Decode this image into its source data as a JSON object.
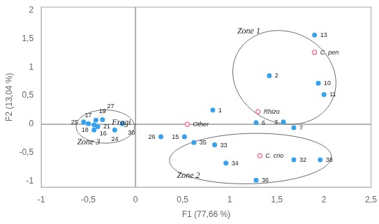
{
  "chart_data": {
    "type": "scatter",
    "xlabel": "F1 (77,66 %)",
    "ylabel": "F2 (13,04 %)",
    "series": [
      {
        "marker": "circle",
        "x": [
          0.82,
          1.42,
          1.57,
          1.28,
          1.68,
          1.94,
          2.0,
          1.9,
          0.52,
          -0.44,
          -0.5,
          -0.44,
          -0.35,
          -0.4,
          -0.22,
          -0.55,
          0.27,
          -0.42,
          -0.14,
          1.68,
          0.84,
          0.96,
          0.62,
          1.28,
          1.96
        ],
        "y": [
          0.25,
          0.85,
          0.04,
          0.03,
          -0.06,
          0.72,
          0.52,
          1.56,
          -0.22,
          -0.01,
          0.01,
          -0.1,
          0.08,
          -0.04,
          -0.1,
          0.04,
          -0.22,
          0.07,
          0.01,
          -0.62,
          -0.36,
          -0.68,
          -0.32,
          -0.98,
          -0.62
        ],
        "point_labels": [
          "1",
          "2",
          "3",
          "6",
          "7",
          "10",
          "11",
          "13",
          "15",
          "16",
          "17",
          "18",
          "19",
          "21",
          "24",
          "25",
          "26",
          "27",
          "30",
          "32",
          "33",
          "34",
          "35",
          "36",
          "38"
        ]
      },
      {
        "marker": "open_circle",
        "x": [
          0.55,
          1.3,
          1.9,
          1.32
        ],
        "y": [
          0.0,
          0.22,
          1.26,
          -0.55
        ],
        "point_labels": [
          "Other",
          "Rhizo",
          "C. pen",
          "C. crio"
        ]
      }
    ],
    "ellipses": [
      {
        "cx": 1.58,
        "cy": 0.82,
        "width": 1.08,
        "height": 1.65,
        "angle": 8
      },
      {
        "cx": 1.22,
        "cy": -0.6,
        "width": 1.72,
        "height": 0.88,
        "angle": 3
      },
      {
        "cx": -0.32,
        "cy": -0.04,
        "width": 0.62,
        "height": 0.58,
        "angle": 0
      }
    ],
    "annotations": [
      {
        "text": "Zone 1",
        "x": 1.08,
        "y": 1.63
      },
      {
        "text": "Zone 2",
        "x": 0.44,
        "y": -0.9
      },
      {
        "text": "Zone 3",
        "x": -0.62,
        "y": -0.32
      },
      {
        "text": "Fragi",
        "x": -0.25,
        "y": 0.03
      }
    ],
    "reference_lines": {
      "x": [
        0
      ],
      "y": [
        0
      ]
    },
    "xlim": [
      -1.0,
      2.5
    ],
    "ylim": [
      -1.1,
      2.05
    ],
    "xticks": [
      -1,
      {
        "value": -0.5,
        "label": "-0,5"
      },
      0,
      {
        "value": 0.5,
        "label": "0,5"
      },
      1,
      {
        "value": 1.5,
        "label": "1,5"
      },
      2,
      {
        "value": 2.5,
        "label": "2,5"
      }
    ],
    "yticks": [
      -1,
      {
        "value": -0.5,
        "label": "-0,5"
      },
      0,
      {
        "value": 0.5,
        "label": "0,5"
      },
      1,
      {
        "value": 1.5,
        "label": "1,5"
      },
      2
    ],
    "grid": false
  }
}
